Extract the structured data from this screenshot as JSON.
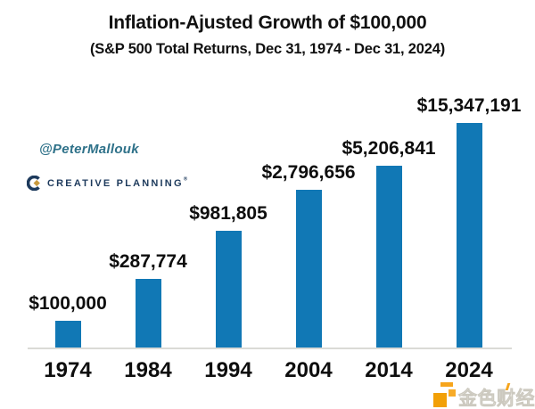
{
  "chart_data": {
    "type": "bar",
    "title": "Inflation-Ajusted Growth of $100,000",
    "subtitle": "(S&P 500 Total Returns, Dec 31, 1974 - Dec 31, 2024)",
    "categories": [
      "1974",
      "1984",
      "1994",
      "2004",
      "2014",
      "2024"
    ],
    "values": [
      100000,
      287774,
      981805,
      2796656,
      5206841,
      15347191
    ],
    "value_labels": [
      "$100,000",
      "$287,774",
      "$981,805",
      "$2,796,656",
      "$5,206,841",
      "$15,347,191"
    ],
    "xlabel": "",
    "ylabel": "",
    "scale": "log",
    "grid": false,
    "legend": false,
    "bar_color": "#1178b5",
    "axis_line_color": "#dadad6",
    "label_color": "#0e0e0e"
  },
  "branding": {
    "handle": "@PeterMallouk",
    "handle_color": "#2e7189",
    "company": "CREATIVE PLANNING",
    "registered_mark": "®",
    "brand_navy": "#1d3a5c",
    "brand_gold": "#c99a3d"
  },
  "watermark": {
    "text": "金色财经",
    "accent_color": "#f6a51c"
  }
}
